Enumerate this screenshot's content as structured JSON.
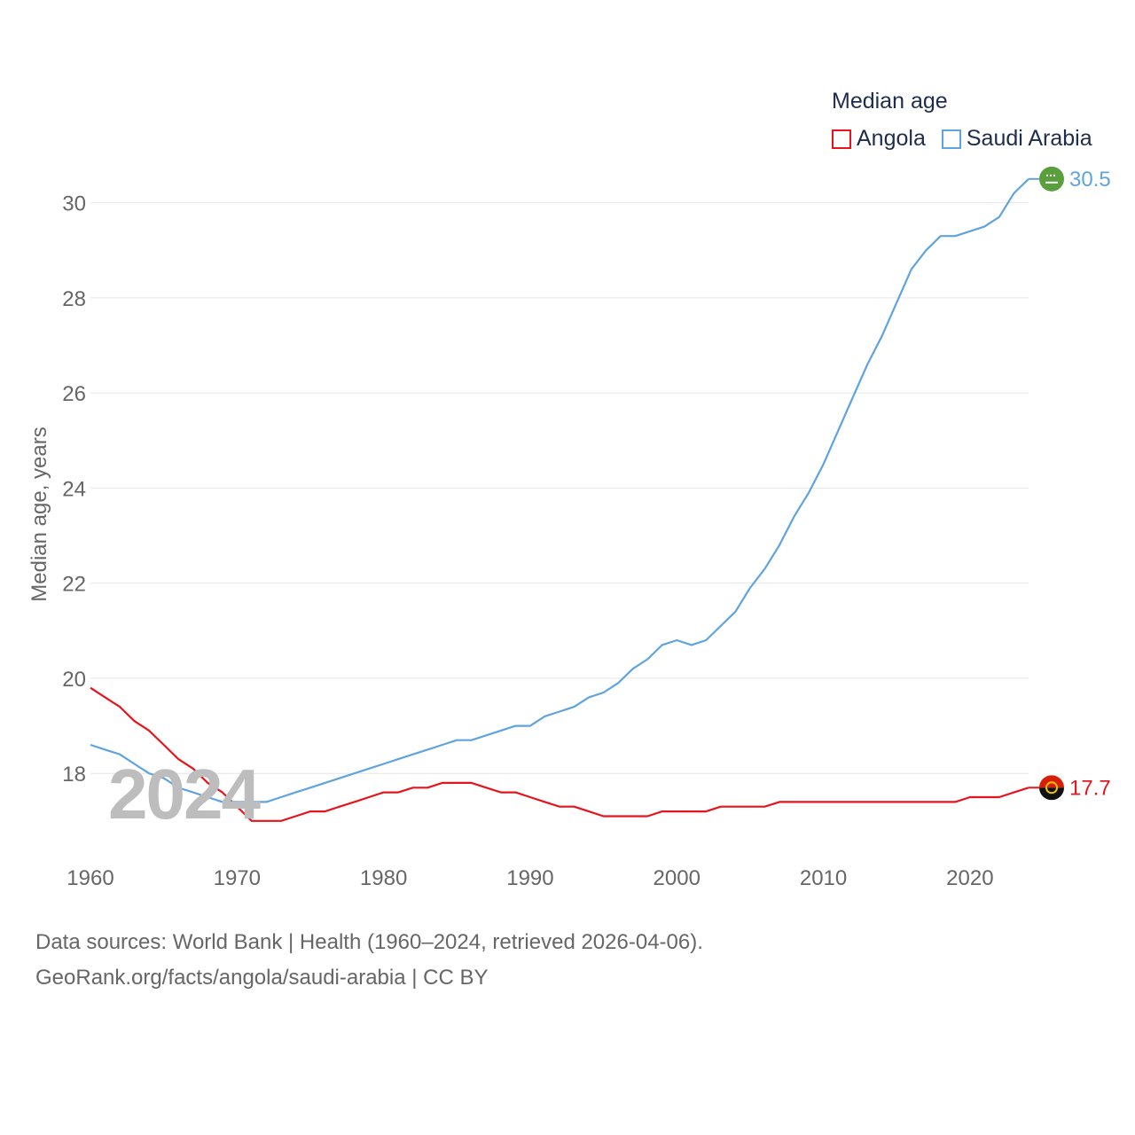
{
  "chart_data": {
    "type": "line",
    "title": "Median age",
    "ylabel": "Median age, years",
    "xlabel": "",
    "xlim": [
      1960,
      2024
    ],
    "ylim": [
      16.4,
      31
    ],
    "yticks": [
      18,
      20,
      22,
      24,
      26,
      28,
      30
    ],
    "xticks": [
      1960,
      1970,
      1980,
      1990,
      2000,
      2010,
      2020
    ],
    "grid": true,
    "legend_position": "top-right",
    "current_year_label": "2024",
    "x": [
      1960,
      1961,
      1962,
      1963,
      1964,
      1965,
      1966,
      1967,
      1968,
      1969,
      1970,
      1971,
      1972,
      1973,
      1974,
      1975,
      1976,
      1977,
      1978,
      1979,
      1980,
      1981,
      1982,
      1983,
      1984,
      1985,
      1986,
      1987,
      1988,
      1989,
      1990,
      1991,
      1992,
      1993,
      1994,
      1995,
      1996,
      1997,
      1998,
      1999,
      2000,
      2001,
      2002,
      2003,
      2004,
      2005,
      2006,
      2007,
      2008,
      2009,
      2010,
      2011,
      2012,
      2013,
      2014,
      2015,
      2016,
      2017,
      2018,
      2019,
      2020,
      2021,
      2022,
      2023,
      2024
    ],
    "series": [
      {
        "name": "Angola",
        "color": "#e8141b",
        "end_label": "17.7",
        "values": [
          19.8,
          19.6,
          19.4,
          19.1,
          18.9,
          18.6,
          18.3,
          18.1,
          17.8,
          17.6,
          17.3,
          17.0,
          17.0,
          17.0,
          17.1,
          17.2,
          17.2,
          17.3,
          17.4,
          17.5,
          17.6,
          17.6,
          17.7,
          17.7,
          17.8,
          17.8,
          17.8,
          17.7,
          17.6,
          17.6,
          17.5,
          17.4,
          17.3,
          17.3,
          17.2,
          17.1,
          17.1,
          17.1,
          17.1,
          17.2,
          17.2,
          17.2,
          17.2,
          17.3,
          17.3,
          17.3,
          17.3,
          17.4,
          17.4,
          17.4,
          17.4,
          17.4,
          17.4,
          17.4,
          17.4,
          17.4,
          17.4,
          17.4,
          17.4,
          17.4,
          17.5,
          17.5,
          17.5,
          17.6,
          17.7
        ]
      },
      {
        "name": "Saudi Arabia",
        "color": "#5fa3e0",
        "end_label": "30.5",
        "values": [
          18.6,
          18.5,
          18.4,
          18.2,
          18.0,
          17.9,
          17.7,
          17.6,
          17.5,
          17.4,
          17.4,
          17.4,
          17.4,
          17.5,
          17.6,
          17.7,
          17.8,
          17.9,
          18.0,
          18.1,
          18.2,
          18.3,
          18.4,
          18.5,
          18.6,
          18.7,
          18.7,
          18.8,
          18.9,
          19.0,
          19.0,
          19.2,
          19.3,
          19.4,
          19.6,
          19.7,
          19.9,
          20.2,
          20.4,
          20.7,
          20.8,
          20.7,
          20.8,
          21.1,
          21.4,
          21.9,
          22.3,
          22.8,
          23.4,
          23.9,
          24.5,
          25.2,
          25.9,
          26.6,
          27.2,
          27.9,
          28.6,
          29.0,
          29.3,
          29.3,
          29.4,
          29.5,
          29.7,
          30.2,
          30.5
        ]
      }
    ]
  },
  "footer": {
    "line1": "Data sources: World Bank | Health (1960–2024, retrieved 2026-04-06).",
    "line2": "GeoRank.org/facts/angola/saudi-arabia | CC BY"
  },
  "flags": {
    "angola": "angola-flag-icon",
    "saudi_arabia": "saudi-arabia-flag-icon"
  }
}
